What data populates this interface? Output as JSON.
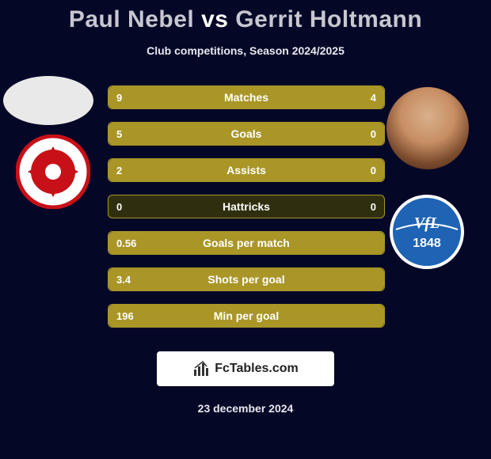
{
  "title": {
    "player1": "Paul Nebel",
    "vs": "vs",
    "player2": "Gerrit Holtmann"
  },
  "subtitle": "Club competitions, Season 2024/2025",
  "clubs": {
    "left": {
      "name": "FSV Mainz 05",
      "ring_color": "#c81018",
      "inner_color": "#ffffff"
    },
    "right": {
      "name": "VfL Bochum",
      "ring_color": "#ffffff",
      "inner_color": "#1e63b4"
    }
  },
  "stats": {
    "bar_color": "#a99627",
    "bar_track": "#2f2f0f",
    "text_color": "#ffffff",
    "rows": [
      {
        "label": "Matches",
        "left": "9",
        "right": "4",
        "left_pct": 69,
        "right_pct": 31
      },
      {
        "label": "Goals",
        "left": "5",
        "right": "0",
        "left_pct": 100,
        "right_pct": 0
      },
      {
        "label": "Assists",
        "left": "2",
        "right": "0",
        "left_pct": 100,
        "right_pct": 0
      },
      {
        "label": "Hattricks",
        "left": "0",
        "right": "0",
        "left_pct": 0,
        "right_pct": 0
      },
      {
        "label": "Goals per match",
        "left": "0.56",
        "right": "",
        "left_pct": 100,
        "right_pct": 0
      },
      {
        "label": "Shots per goal",
        "left": "3.4",
        "right": "",
        "left_pct": 100,
        "right_pct": 0
      },
      {
        "label": "Min per goal",
        "left": "196",
        "right": "",
        "left_pct": 100,
        "right_pct": 0
      }
    ]
  },
  "footer": {
    "site": "FcTables.com",
    "date": "23 december 2024"
  }
}
